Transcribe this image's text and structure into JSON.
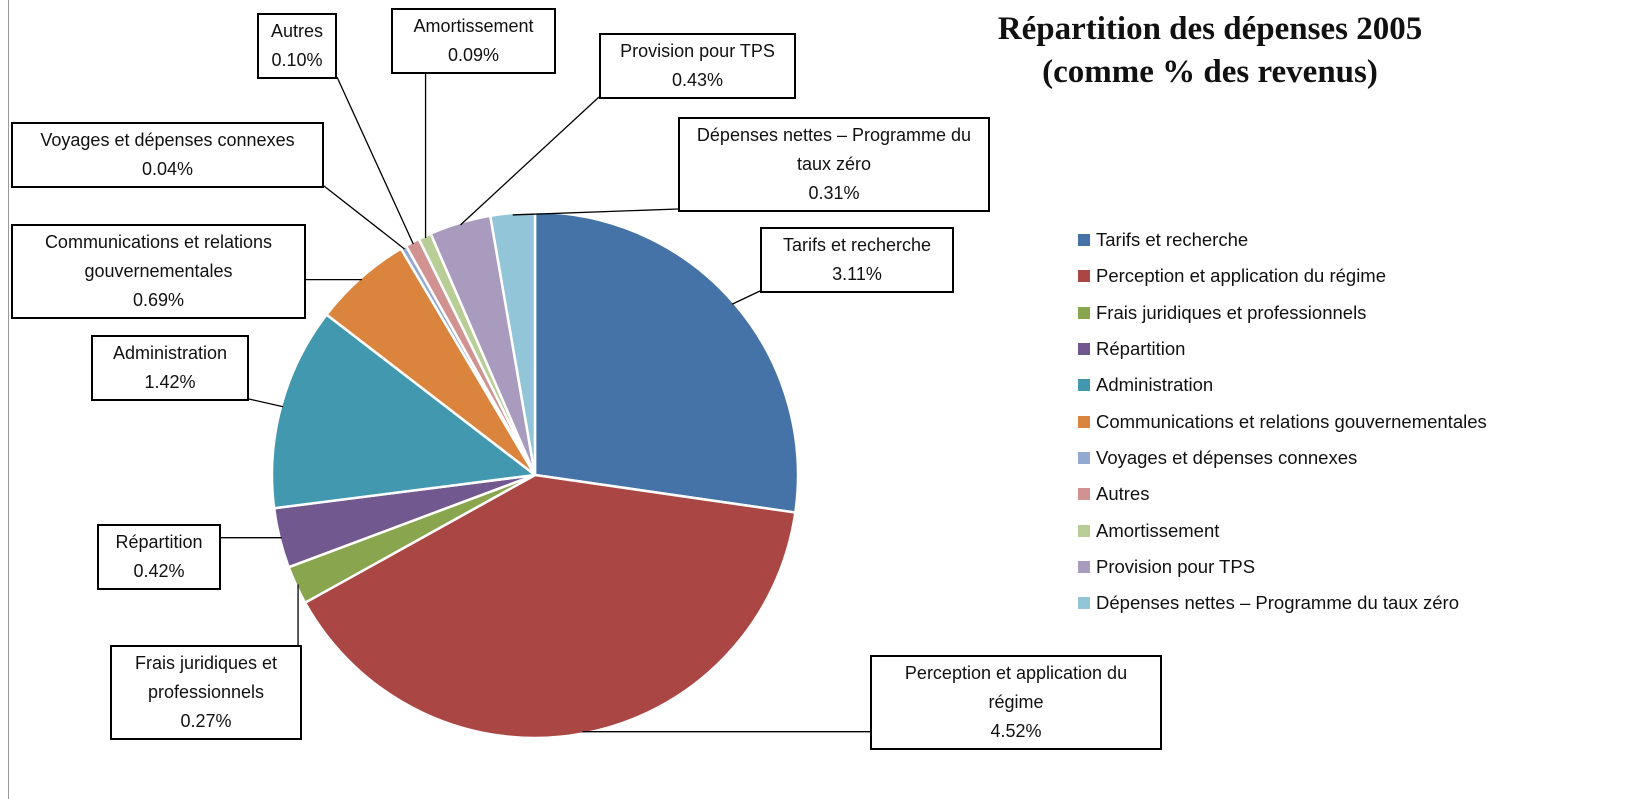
{
  "chart_data": {
    "type": "pie",
    "title": "Répartition des dépenses 2005",
    "subtitle": "(comme % des revenus)",
    "categories": [
      "Tarifs et recherche",
      "Perception et application du régime",
      "Frais juridiques et professionnels",
      "Répartition",
      "Administration",
      "Communications et relations gouvernementales",
      "Voyages et dépenses connexes",
      "Autres",
      "Amortissement",
      "Provision pour TPS",
      "Dépenses nettes – Programme du taux zéro"
    ],
    "values": [
      3.11,
      4.52,
      0.27,
      0.42,
      1.42,
      0.69,
      0.04,
      0.1,
      0.09,
      0.43,
      0.31
    ],
    "value_labels": [
      "3.11%",
      "4.52%",
      "0.27%",
      "0.42%",
      "1.42%",
      "0.69%",
      "0.04%",
      "0.10%",
      "0.09%",
      "0.43%",
      "0.31%"
    ],
    "colors": [
      "#4572a7",
      "#aa4643",
      "#89a54e",
      "#71588f",
      "#4198af",
      "#db843d",
      "#93a9cf",
      "#d19392",
      "#b9cd96",
      "#a99bbd",
      "#92c5d8"
    ],
    "legend": "right"
  }
}
